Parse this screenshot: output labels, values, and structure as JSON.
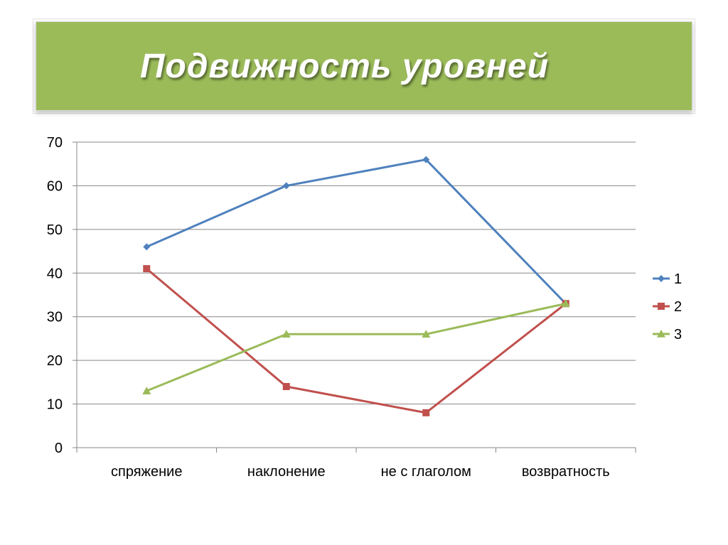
{
  "slide": {
    "title": "Подвижность уровней",
    "banner_color": "#9bbb59"
  },
  "chart_data": {
    "type": "line",
    "categories": [
      "спряжение",
      "наклонение",
      "не с глаголом",
      "возвратность"
    ],
    "series": [
      {
        "name": "1",
        "values": [
          46,
          60,
          66,
          33
        ],
        "color": "#4f81bd",
        "marker": "diamond"
      },
      {
        "name": "2",
        "values": [
          41,
          14,
          8,
          33
        ],
        "color": "#c0504d",
        "marker": "square"
      },
      {
        "name": "3",
        "values": [
          13,
          26,
          26,
          33
        ],
        "color": "#9bbb59",
        "marker": "triangle"
      }
    ],
    "yticks": [
      0,
      10,
      20,
      30,
      40,
      50,
      60,
      70
    ],
    "ylim": [
      0,
      70
    ],
    "grid": true,
    "legend": "right",
    "title": "",
    "xlabel": "",
    "ylabel": ""
  }
}
